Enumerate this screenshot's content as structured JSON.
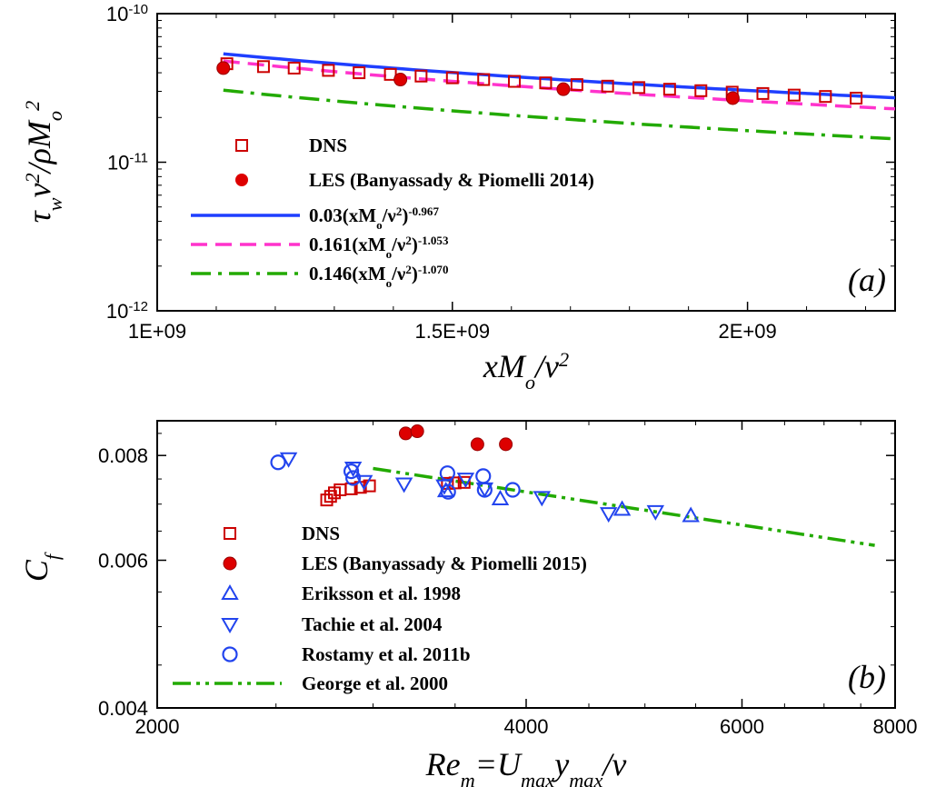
{
  "chart_data": [
    {
      "type": "line",
      "panel_label": "(a)",
      "xlabel_parts": [
        "x",
        "M",
        "o",
        "/",
        "ν",
        "2"
      ],
      "ylabel_parts": [
        "τ",
        "w",
        "ν",
        "2",
        "/ρ",
        "M",
        "o",
        "2"
      ],
      "xlim": [
        1000000000,
        2250000000
      ],
      "ylim": [
        1e-12,
        1e-10
      ],
      "yscale": "log",
      "x_tick_labels": [
        "1E+09",
        "1.5E+09",
        "2E+09"
      ],
      "x_tick_values": [
        1000000000,
        1500000000,
        2000000000
      ],
      "y_tick_labels": [
        {
          "base": "10",
          "exp": "-12",
          "value": 1e-12
        },
        {
          "base": "10",
          "exp": "-11",
          "value": 1e-11
        },
        {
          "base": "10",
          "exp": "-10",
          "value": 1e-10
        }
      ],
      "series": [
        {
          "name": "DNS",
          "kind": "open-square",
          "color": "#cc0000",
          "x": [
            1118000000,
            1180000000,
            1232000000,
            1290000000,
            1342000000,
            1395000000,
            1447000000,
            1500000000,
            1553000000,
            1605000000,
            1658000000,
            1711000000,
            1763000000,
            1816000000,
            1868000000,
            1921000000,
            1974000000,
            2026000000,
            2079000000,
            2132000000,
            2184000000
          ],
          "y": [
            4.6e-11,
            4.4e-11,
            4.3e-11,
            4.15e-11,
            4e-11,
            3.9e-11,
            3.8e-11,
            3.7e-11,
            3.6e-11,
            3.5e-11,
            3.42e-11,
            3.33e-11,
            3.25e-11,
            3.18e-11,
            3.1e-11,
            3.03e-11,
            2.96e-11,
            2.9e-11,
            2.83e-11,
            2.77e-11,
            2.7e-11
          ]
        },
        {
          "name": "LES (Banyassady & Piomelli 2014)",
          "kind": "filled-circle",
          "color": "#dd0000",
          "x": [
            1112000000,
            1412000000,
            1688000000,
            1975000000
          ],
          "y": [
            4.3e-11,
            3.6e-11,
            3.1e-11,
            2.7e-11
          ]
        },
        {
          "name_parts": [
            "0.03(xM",
            "o",
            "/ν",
            "2",
            ")",
            "-0.967"
          ],
          "kind": "solid",
          "color": "#1f3fff",
          "coef": 0.03,
          "exponent": -0.967,
          "x_range": [
            1112000000,
            2250000000
          ]
        },
        {
          "name_parts": [
            "0.161(xM",
            "o",
            "/ν",
            "2",
            ")",
            "-1.053"
          ],
          "kind": "dashed",
          "color": "#ff33cc",
          "coef": 0.161,
          "exponent": -1.053,
          "x_range": [
            1112000000,
            2250000000
          ]
        },
        {
          "name_parts": [
            "0.146(xM",
            "o",
            "/ν",
            "2",
            ")",
            "-1.070"
          ],
          "kind": "dashdot",
          "color": "#22aa00",
          "coef": 0.146,
          "exponent": -1.07,
          "x_range": [
            1112000000,
            2250000000
          ]
        }
      ]
    },
    {
      "type": "scatter",
      "panel_label": "(b)",
      "xlabel_parts": [
        "Re",
        "m",
        "=U",
        "max",
        "y",
        "max",
        "/ν"
      ],
      "ylabel_parts": [
        "C",
        "f"
      ],
      "xscale": "log",
      "yscale": "log",
      "xlim": [
        2000,
        8000
      ],
      "ylim": [
        0.004,
        0.0088
      ],
      "x_tick_labels": [
        "2000",
        "4000",
        "6000",
        "8000"
      ],
      "x_tick_values": [
        2000,
        4000,
        6000,
        8000
      ],
      "y_tick_labels": [
        "0.004",
        "0.006",
        "0.008"
      ],
      "y_tick_values": [
        0.004,
        0.006,
        0.008
      ],
      "series": [
        {
          "name": "DNS",
          "kind": "open-square",
          "color": "#cc0000",
          "x": [
            2750,
            2770,
            2790,
            2820,
            2880,
            2930,
            2980,
            3450,
            3500,
            3560
          ],
          "y": [
            0.00708,
            0.00715,
            0.00722,
            0.00728,
            0.0073,
            0.00733,
            0.00736,
            0.00741,
            0.00742,
            0.00743
          ]
        },
        {
          "name": "LES (Banyassady & Piomelli 2015)",
          "kind": "filled-circle",
          "color": "#dd0000",
          "x": [
            3190,
            3260,
            3650,
            3850
          ],
          "y": [
            0.0085,
            0.00855,
            0.00825,
            0.00825
          ]
        },
        {
          "name": "Eriksson et al. 1998",
          "kind": "up-triangle",
          "color": "#2244ee",
          "x": [
            3440,
            3810,
            4790,
            5450
          ],
          "y": [
            0.00726,
            0.0071,
            0.0069,
            0.00678
          ]
        },
        {
          "name": "Tachie et al. 2004",
          "kind": "down-triangle",
          "color": "#2244ee",
          "x": [
            2560,
            2890,
            2950,
            3180,
            3430,
            3570,
            3700,
            4120,
            4670,
            5100
          ],
          "y": [
            0.00793,
            0.00773,
            0.00745,
            0.0074,
            0.00736,
            0.0075,
            0.0073,
            0.00713,
            0.00682,
            0.00686
          ]
        },
        {
          "name": "Rostamy et al. 2011b",
          "kind": "open-circle",
          "color": "#2244ee",
          "x": [
            2510,
            2880,
            2890,
            3450,
            3455,
            3690,
            3700,
            3900
          ],
          "y": [
            0.00785,
            0.00766,
            0.00752,
            0.00762,
            0.00724,
            0.00756,
            0.00728,
            0.00728
          ]
        },
        {
          "name": "George et al. 2000",
          "kind": "dashdotdot",
          "color": "#22aa00",
          "x": [
            3000,
            7700
          ],
          "y": [
            0.00772,
            0.00625
          ]
        }
      ]
    }
  ]
}
